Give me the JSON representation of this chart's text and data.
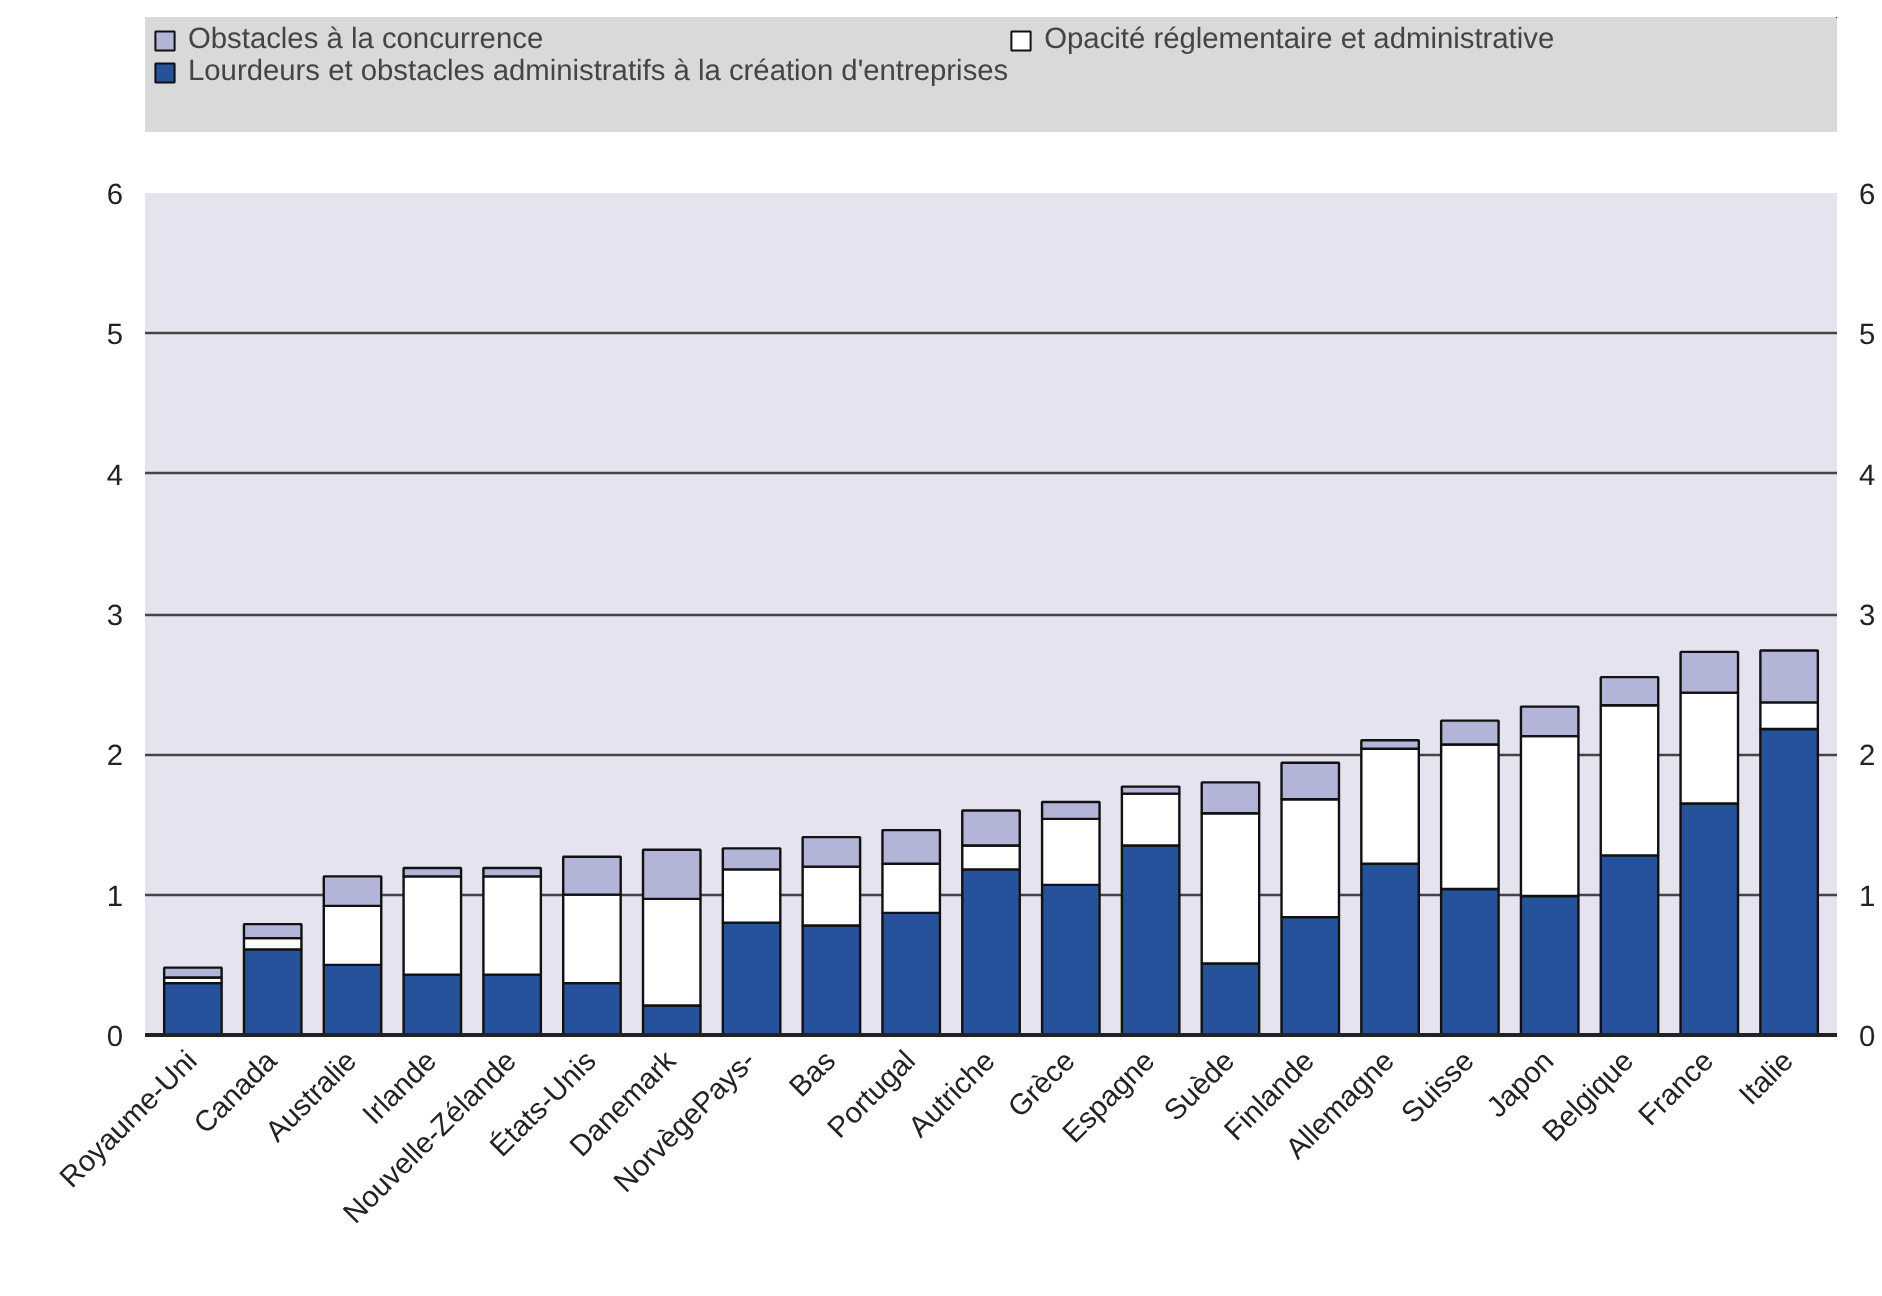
{
  "chart_data": {
    "type": "bar",
    "stacked": true,
    "categories": [
      "Royaume-Uni",
      "Canada",
      "Australie",
      "Irlande",
      "Nouvelle-Zélande",
      "États-Unis",
      "Danemark",
      "NorvègePays-",
      "Bas",
      "Portugal",
      "Autriche",
      "Grèce",
      "Espagne",
      "Suède",
      "Finlande",
      "Allemagne",
      "Suisse",
      "Japon",
      "Belgique",
      "France",
      "Italie"
    ],
    "series": [
      {
        "name": "Lourdeurs et obstacles administratifs à la création d'entreprises",
        "color": "#26519b",
        "values": [
          0.37,
          0.61,
          0.5,
          0.43,
          0.43,
          0.37,
          0.21,
          0.8,
          0.78,
          0.87,
          1.18,
          1.07,
          1.35,
          0.51,
          0.84,
          1.22,
          1.04,
          0.99,
          1.28,
          1.65,
          2.18
        ]
      },
      {
        "name": "Opacité réglementaire et administrative",
        "color": "#ffffff",
        "values": [
          0.04,
          0.08,
          0.42,
          0.7,
          0.7,
          0.63,
          0.76,
          0.38,
          0.42,
          0.35,
          0.17,
          0.47,
          0.37,
          1.07,
          0.84,
          0.82,
          1.03,
          1.14,
          1.07,
          0.79,
          0.19
        ]
      },
      {
        "name": "Obstacles à la concurrence",
        "color": "#b3b5d8",
        "values": [
          0.07,
          0.1,
          0.21,
          0.06,
          0.06,
          0.27,
          0.35,
          0.15,
          0.21,
          0.24,
          0.25,
          0.12,
          0.05,
          0.22,
          0.26,
          0.06,
          0.17,
          0.21,
          0.2,
          0.29,
          0.37
        ]
      }
    ],
    "ylim": [
      0,
      6
    ],
    "yticks": [
      0,
      1,
      2,
      3,
      4,
      5,
      6
    ],
    "y2lim": [
      0,
      6
    ],
    "y2ticks": [
      0,
      1,
      2,
      3,
      4,
      5,
      6
    ],
    "grid": "y",
    "legend": "top"
  }
}
